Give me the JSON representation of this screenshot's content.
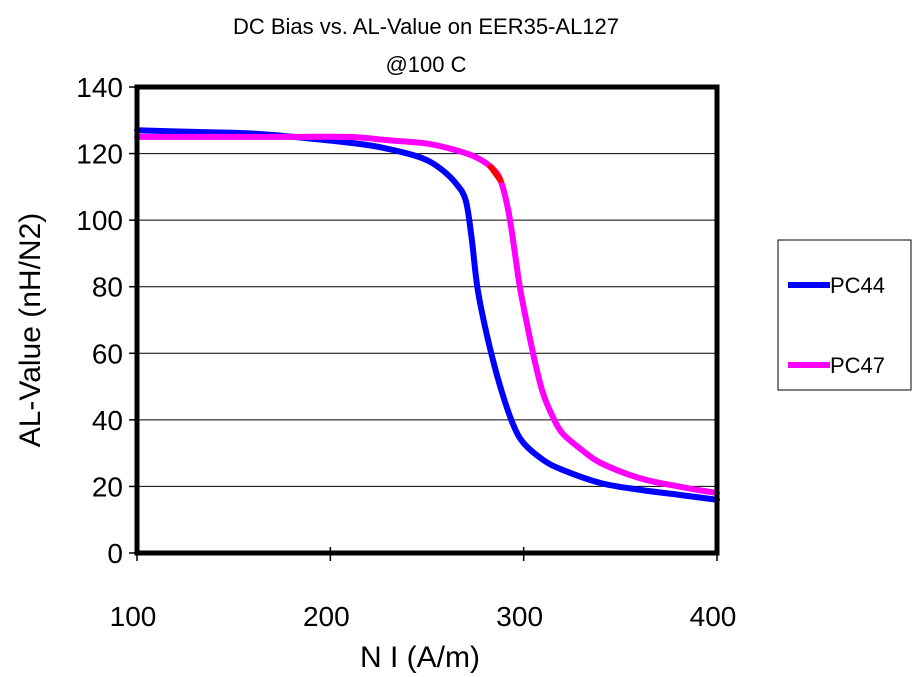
{
  "chart_data": {
    "type": "line",
    "title": "DC Bias vs. AL-Value on EER35-AL127",
    "subtitle": "@100 C",
    "xlabel": "N I (A/m)",
    "ylabel": "AL-Value (nH/N2)",
    "xlim": [
      100,
      400
    ],
    "ylim": [
      0,
      140
    ],
    "x_ticks": [
      100,
      200,
      300,
      400
    ],
    "y_ticks": [
      0,
      20,
      40,
      60,
      80,
      100,
      120,
      140
    ],
    "grid": "horizontal",
    "legend_position": "right",
    "series": [
      {
        "name": "PC44",
        "color": "#0000ff",
        "points": [
          [
            100,
            127
          ],
          [
            130,
            126.5
          ],
          [
            160,
            126
          ],
          [
            190,
            124.5
          ],
          [
            220,
            122.5
          ],
          [
            240,
            120
          ],
          [
            250,
            118
          ],
          [
            258,
            115
          ],
          [
            265,
            111
          ],
          [
            270,
            106
          ],
          [
            273,
            95
          ],
          [
            276,
            80
          ],
          [
            280,
            68
          ],
          [
            285,
            56
          ],
          [
            290,
            46
          ],
          [
            295,
            38
          ],
          [
            300,
            33
          ],
          [
            310,
            28
          ],
          [
            320,
            25
          ],
          [
            340,
            21
          ],
          [
            360,
            19
          ],
          [
            380,
            17.5
          ],
          [
            400,
            16
          ]
        ]
      },
      {
        "name": "PC47",
        "color": "#ff00ff",
        "points": [
          [
            100,
            125
          ],
          [
            140,
            125
          ],
          [
            180,
            125
          ],
          [
            210,
            125
          ],
          [
            230,
            124
          ],
          [
            250,
            123
          ],
          [
            265,
            121
          ],
          [
            275,
            119
          ],
          [
            283,
            116
          ],
          [
            288,
            112
          ],
          [
            292,
            103
          ],
          [
            295,
            92
          ],
          [
            298,
            80
          ],
          [
            302,
            68
          ],
          [
            306,
            57
          ],
          [
            310,
            48
          ],
          [
            315,
            41
          ],
          [
            320,
            36
          ],
          [
            330,
            31
          ],
          [
            340,
            27
          ],
          [
            360,
            22.5
          ],
          [
            380,
            20
          ],
          [
            400,
            18
          ]
        ],
        "highlight": {
          "color": "#ff0000",
          "from": 280,
          "to": 289
        }
      }
    ]
  }
}
